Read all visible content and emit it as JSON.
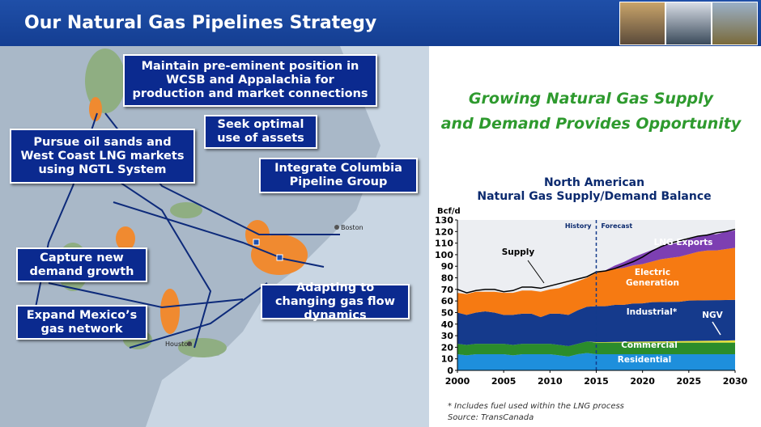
{
  "header": {
    "title": "Our Natural Gas Pipelines Strategy"
  },
  "callouts": [
    "Maintain pre-eminent position in WCSB and Appalachia for production and market connections",
    "Seek optimal use of assets",
    "Pursue oil sands and West Coast LNG markets using NGTL System",
    "Integrate Columbia Pipeline Group",
    "Capture new demand growth",
    "Adapting to changing gas flow dynamics",
    "Expand Mexico’s gas network"
  ],
  "map_labels": [
    "Boston",
    "Houston"
  ],
  "headline": [
    "Growing Natural Gas Supply",
    "and Demand Provides Opportunity"
  ],
  "footnote": "* Includes fuel used within the LNG process",
  "source": "Source: TransCanada",
  "chart_data": {
    "type": "stacked-area",
    "title_lines": [
      "North American",
      "Natural Gas Supply/Demand Balance"
    ],
    "ylabel": "Bcf/d",
    "history_label": "History",
    "forecast_label": "Forecast",
    "divider_x": 2015,
    "x": [
      2000,
      2001,
      2002,
      2003,
      2004,
      2005,
      2006,
      2007,
      2008,
      2009,
      2010,
      2011,
      2012,
      2013,
      2014,
      2015,
      2016,
      2017,
      2018,
      2019,
      2020,
      2021,
      2022,
      2023,
      2024,
      2025,
      2026,
      2027,
      2028,
      2029,
      2030
    ],
    "xlim": [
      2000,
      2030
    ],
    "xticks": [
      2000,
      2005,
      2010,
      2015,
      2020,
      2025,
      2030
    ],
    "ylim": [
      0,
      130
    ],
    "yticks": [
      0,
      10,
      20,
      30,
      40,
      50,
      60,
      70,
      80,
      90,
      100,
      110,
      120,
      130
    ],
    "series": [
      {
        "name": "Residential",
        "color": "#1e8fdc",
        "values": [
          14,
          13,
          14,
          14,
          14,
          14,
          13,
          14,
          14,
          14,
          14,
          13,
          12,
          14,
          15,
          14,
          14,
          14,
          14,
          14,
          14,
          14,
          14,
          14,
          14,
          14,
          14,
          14,
          14,
          14,
          14
        ]
      },
      {
        "name": "Commercial",
        "color": "#2b8c2b",
        "values": [
          9,
          9,
          9,
          9,
          9,
          9,
          9,
          9,
          9,
          9,
          9,
          9,
          9,
          9,
          10,
          10,
          10,
          10,
          10,
          10,
          10,
          10,
          10,
          10,
          10,
          10,
          10,
          10,
          10,
          10,
          10
        ]
      },
      {
        "name": "NGV",
        "color": "#e6e23a",
        "values": [
          0,
          0,
          0,
          0,
          0,
          0,
          0,
          0,
          0,
          0,
          0,
          0,
          0,
          0,
          0,
          0.5,
          0.5,
          0.6,
          0.7,
          0.8,
          0.9,
          1,
          1.1,
          1.2,
          1.3,
          1.4,
          1.5,
          1.6,
          1.7,
          1.8,
          2
        ]
      },
      {
        "name": "Industrial*",
        "color": "#153a8c",
        "values": [
          27,
          26,
          27,
          28,
          27,
          25,
          26,
          26,
          26,
          23,
          26,
          27,
          27,
          29,
          30,
          31,
          31,
          32,
          32,
          33,
          33,
          34,
          34,
          34,
          34,
          35,
          35,
          35,
          35,
          35,
          35
        ]
      },
      {
        "name": "Electric Generation",
        "color": "#f67a12",
        "values": [
          17,
          18,
          18,
          17,
          18,
          19,
          19,
          20,
          20,
          22,
          21,
          22,
          26,
          25,
          25,
          29,
          30,
          31,
          32,
          33,
          34,
          35,
          37,
          38,
          39,
          40,
          42,
          43,
          43,
          44,
          45
        ]
      },
      {
        "name": "LNG Exports",
        "color": "#7d3fb2",
        "values": [
          0,
          0,
          0,
          0,
          0,
          0,
          0,
          0,
          0,
          0,
          0,
          0,
          0,
          0,
          0,
          0,
          1,
          3,
          5,
          7,
          9,
          10,
          11,
          12,
          12,
          13,
          13,
          14,
          14,
          15,
          15
        ]
      },
      {
        "name": "Supply",
        "color": "#000000",
        "kind": "line",
        "values": [
          70,
          67,
          69,
          70,
          70,
          68,
          69,
          72,
          72,
          71,
          73,
          75,
          77,
          79,
          81,
          85,
          86,
          88,
          91,
          94,
          98,
          103,
          107,
          110,
          112,
          114,
          116,
          117,
          119,
          120,
          122
        ]
      }
    ]
  }
}
